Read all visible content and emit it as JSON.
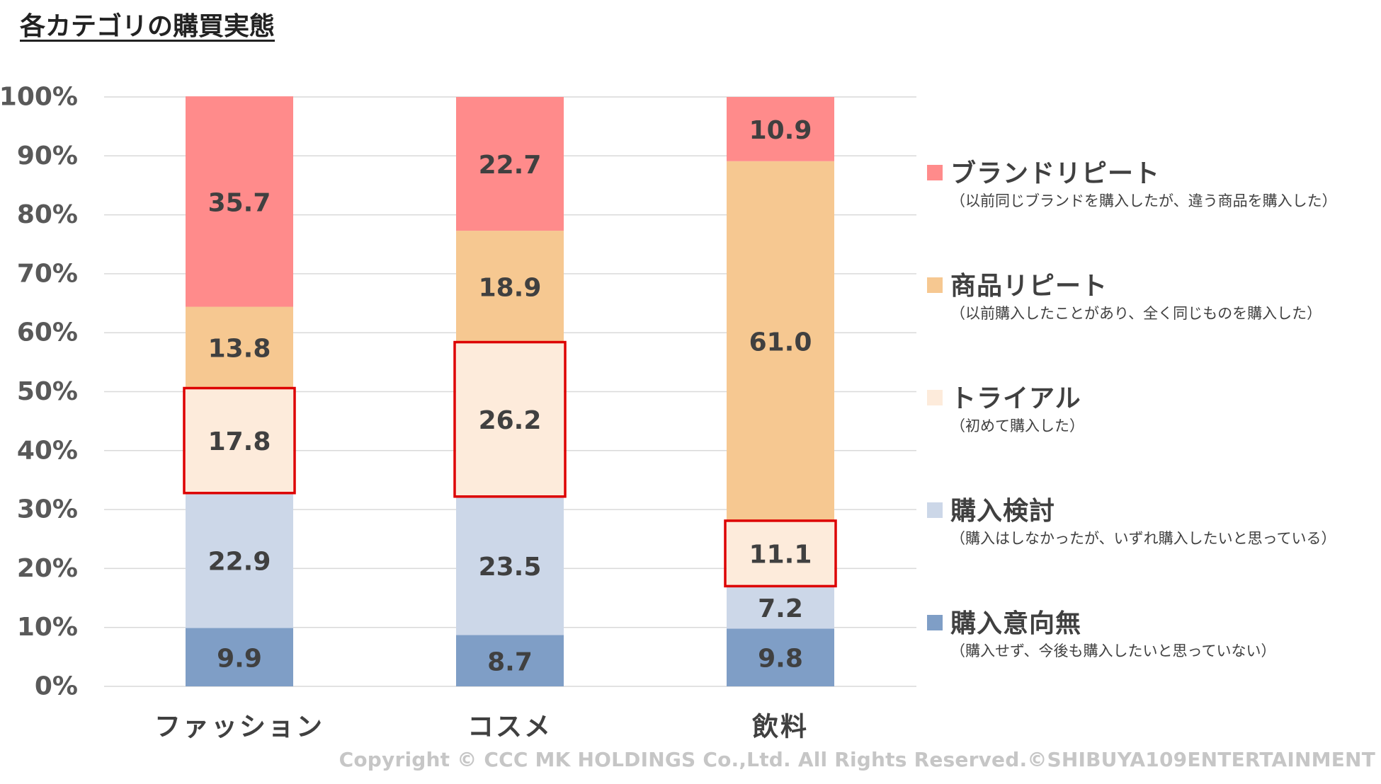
{
  "chart_data": {
    "type": "bar",
    "stacked": true,
    "percent_stacked": true,
    "title": "各カテゴリの購買実態",
    "categories": [
      "ファッション",
      "コスメ",
      "飲料"
    ],
    "series": [
      {
        "name": "購入意向無",
        "description": "（購入せず、今後も購入したいと思っていない）",
        "color": "#7f9ec6",
        "values": [
          9.9,
          8.7,
          9.8
        ]
      },
      {
        "name": "購入検討",
        "description": "（購入はしなかったが、いずれ購入したいと思っている）",
        "color": "#ccd7e8",
        "values": [
          22.9,
          23.5,
          7.2
        ]
      },
      {
        "name": "トライアル",
        "description": "（初めて購入した）",
        "color": "#fdebdb",
        "values": [
          17.8,
          26.2,
          11.1
        ],
        "highlighted": true,
        "highlight_color": "#dd0000"
      },
      {
        "name": "商品リピート",
        "description": "（以前購入したことがあり、全く同じものを購入した）",
        "color": "#f6c891",
        "values": [
          13.8,
          18.9,
          61.0
        ]
      },
      {
        "name": "ブランドリピート",
        "description": "（以前同じブランドを購入したが、違う商品を購入した）",
        "color": "#ff8b8b",
        "values": [
          35.7,
          22.7,
          10.9
        ]
      }
    ],
    "yticks": [
      "0%",
      "10%",
      "20%",
      "30%",
      "40%",
      "50%",
      "60%",
      "70%",
      "80%",
      "90%",
      "100%"
    ],
    "ylim": [
      0,
      100
    ],
    "grid": true,
    "legend": "right"
  },
  "footer": {
    "copyright": "Copyright © CCC MK HOLDINGS Co.,Ltd. All Rights Reserved.©SHIBUYA109ENTERTAINMENT"
  }
}
